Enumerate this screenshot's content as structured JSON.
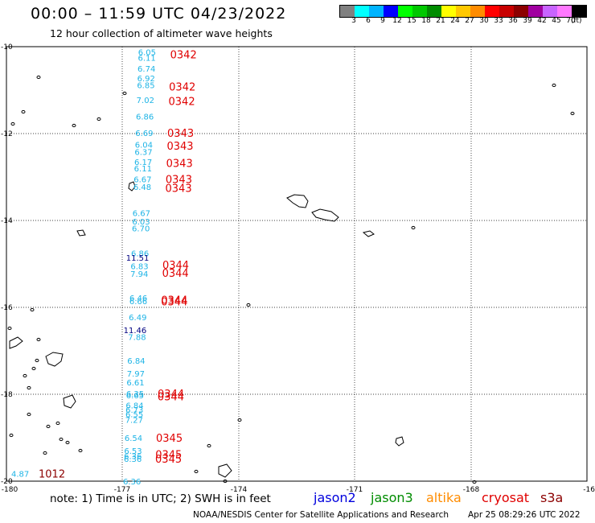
{
  "header": {
    "title": "00:00 – 11:59 UTC 04/23/2022",
    "subtitle": "12 hour collection of altimeter wave heights"
  },
  "colorbar": {
    "colors": [
      "#808080",
      "#00ffff",
      "#00b4ff",
      "#0000ff",
      "#00ff00",
      "#00c800",
      "#008c00",
      "#ffff00",
      "#ffc800",
      "#ff8c00",
      "#ff0000",
      "#c80000",
      "#8c0000",
      "#a000a0",
      "#c864ff",
      "#ff78ff",
      "#000000"
    ],
    "labels": [
      "3",
      "6",
      "9",
      "12",
      "15",
      "18",
      "21",
      "24",
      "27",
      "30",
      "33",
      "36",
      "39",
      "42",
      "45",
      "70"
    ],
    "unit": "(ft)"
  },
  "axes": {
    "lat_labels": [
      "-10",
      "-12",
      "-14",
      "-16",
      "-18",
      "-20"
    ],
    "lon_labels": [
      "-180",
      "-177",
      "-174",
      "-171",
      "-168",
      "-16"
    ]
  },
  "tracks": [
    {
      "name": "cryosat",
      "time": "0342",
      "time_lat": -10.18,
      "obs": [
        [
          -10.12,
          "6.05"
        ],
        [
          -10.25,
          "6.11"
        ],
        [
          -10.5,
          "6.74"
        ],
        [
          -10.72,
          "6.92"
        ],
        [
          -10.88,
          "6.85"
        ],
        [
          -11.22,
          "7.02"
        ],
        [
          -11.6,
          "6.86"
        ]
      ]
    },
    {
      "name": "cryosat",
      "time": "0342",
      "time_lat": -10.92,
      "obs": []
    },
    {
      "name": "cryosat",
      "time": "0342",
      "time_lat": -11.25,
      "obs": []
    },
    {
      "name": "cryosat",
      "time": "0343",
      "time_lat": -11.98,
      "obs": [
        [
          -11.98,
          "6.69"
        ],
        [
          -12.25,
          "6.04"
        ],
        [
          -12.42,
          "6.37"
        ],
        [
          -12.65,
          "6.17"
        ],
        [
          -12.8,
          "6.11"
        ],
        [
          -13.05,
          "6.67"
        ],
        [
          -13.22,
          "6.48"
        ],
        [
          -13.82,
          "6.67"
        ],
        [
          -14.02,
          "6.03"
        ],
        [
          -14.18,
          "6.70"
        ]
      ]
    },
    {
      "name": "cryosat",
      "time": "0343",
      "time_lat": -12.28,
      "obs": []
    },
    {
      "name": "cryosat",
      "time": "0343",
      "time_lat": -12.68,
      "obs": []
    },
    {
      "name": "cryosat",
      "time": "0343",
      "time_lat": -13.05,
      "obs": []
    },
    {
      "name": "cryosat",
      "time": "0343",
      "time_lat": -13.25,
      "obs": []
    },
    {
      "name": "cryosat",
      "time": "0344",
      "time_lat": -15.02,
      "obs": [
        [
          -14.75,
          "6.86"
        ],
        [
          -15.05,
          "6.83"
        ],
        [
          -15.22,
          "7.94"
        ],
        [
          -15.78,
          "6.46"
        ],
        [
          -15.85,
          "6.66"
        ],
        [
          -16.22,
          "6.49"
        ],
        [
          -16.68,
          "7.88"
        ],
        [
          -17.22,
          "6.84"
        ],
        [
          -17.52,
          "7.97"
        ],
        [
          -17.72,
          "6.61"
        ],
        [
          -17.98,
          "6.35"
        ],
        [
          -18.02,
          "6.65"
        ],
        [
          -18.25,
          "6.84"
        ],
        [
          -18.35,
          "6.73"
        ],
        [
          -18.45,
          "6.55"
        ],
        [
          -18.58,
          "7.27"
        ],
        [
          -19.0,
          "6.54"
        ],
        [
          -19.3,
          "6.53"
        ],
        [
          -19.42,
          "6.36"
        ],
        [
          -19.48,
          "6.36"
        ],
        [
          -20.0,
          "6.36"
        ]
      ]
    },
    {
      "name": "cryosat",
      "time": "0344",
      "time_lat": -15.2,
      "obs": []
    },
    {
      "name": "cryosat",
      "time": "0344",
      "time_lat": -15.82,
      "obs": []
    },
    {
      "name": "cryosat",
      "time": "0344",
      "time_lat": -15.86,
      "obs": []
    },
    {
      "name": "cryosat",
      "time": "0344",
      "time_lat": -17.98,
      "obs": []
    },
    {
      "name": "cryosat",
      "time": "0344",
      "time_lat": -18.05,
      "obs": []
    },
    {
      "name": "cryosat",
      "time": "0345",
      "time_lat": -19.0,
      "obs": []
    },
    {
      "name": "cryosat",
      "time": "0345",
      "time_lat": -19.38,
      "obs": []
    },
    {
      "name": "cryosat",
      "time": "0345",
      "time_lat": -19.48,
      "obs": []
    },
    {
      "name": "cryosat",
      "time": "1012",
      "time_lat": -19.82,
      "obs": [
        [
          -19.82,
          "4.87"
        ]
      ]
    }
  ],
  "dark_obs": [
    {
      "lat": -14.85,
      "value": "11.51"
    },
    {
      "lat": -16.52,
      "value": "11.46"
    }
  ],
  "footer": {
    "note": "note: 1) Time is in UTC; 2) SWH is in feet",
    "credit": "NOAA/NESDIS Center for Satellite Applications and Research",
    "generated": "Apr 25 08:29:26 UTC 2022"
  },
  "legend": [
    {
      "name": "jason2",
      "color": "#0000dd"
    },
    {
      "name": "jason3",
      "color": "#008c00"
    },
    {
      "name": "altika",
      "color": "#ff8c00"
    },
    {
      "name": "cryosat",
      "color": "#e00000"
    },
    {
      "name": "s3a",
      "color": "#8c0000"
    }
  ],
  "style": {
    "obs_color": "#1eb4e6",
    "dark_obs_color": "#000080",
    "time_color": "#e00000",
    "late_time_color": "#8c0000"
  }
}
